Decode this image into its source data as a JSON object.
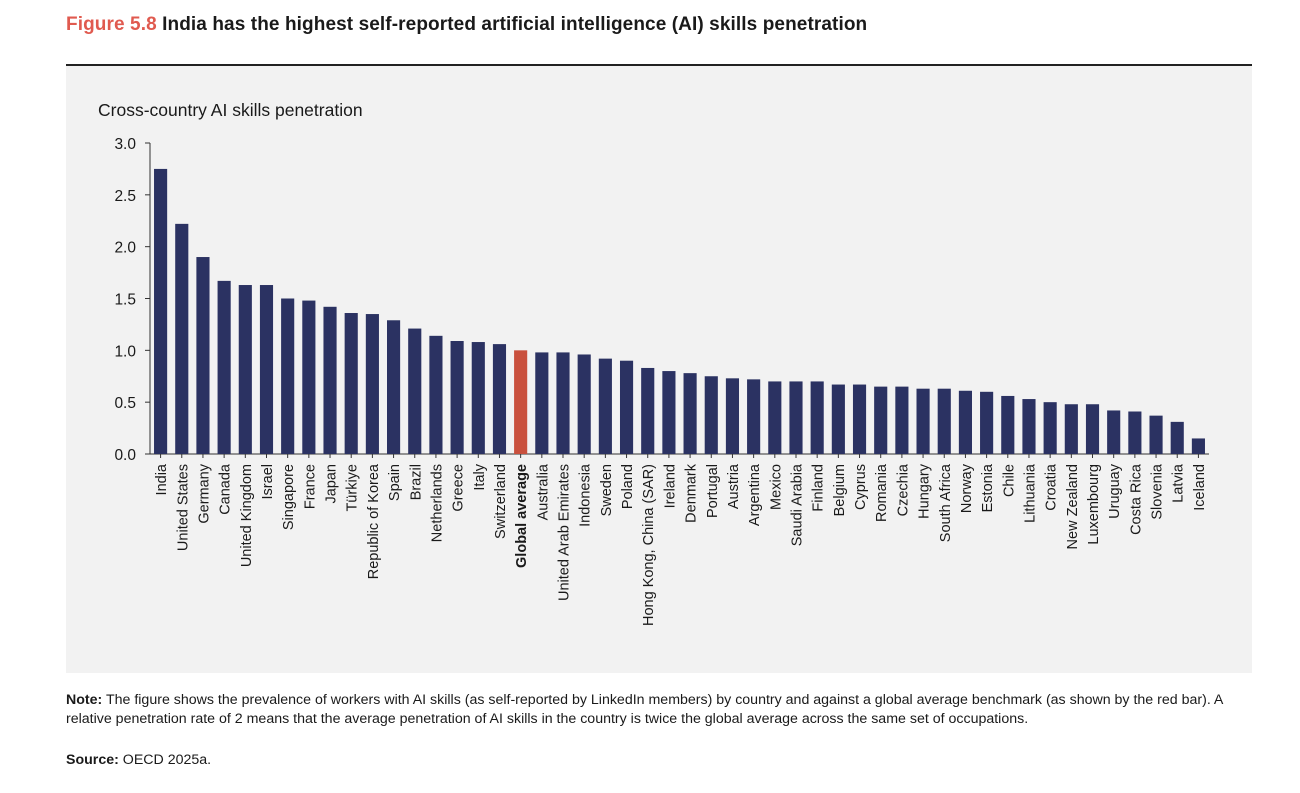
{
  "figure": {
    "label": "Figure 5.8",
    "title": "India has the highest self-reported artificial intelligence (AI) skills penetration"
  },
  "note": {
    "label": "Note:",
    "text": "The figure shows the prevalence of workers with AI skills (as self-reported by LinkedIn members) by country and against a global average benchmark (as shown by the red bar). A relative penetration rate of 2 means that the average penetration of AI skills in the country is twice the global average across the same set of occupations."
  },
  "source": {
    "label": "Source:",
    "text": "OECD 2025a."
  },
  "colors": {
    "bar": "#2b3262",
    "highlight": "#c9503d",
    "figure_label": "#e05a4f",
    "panel": "#f2f2f2"
  },
  "chart_data": {
    "type": "bar",
    "title": "Cross-country AI skills penetration",
    "xlabel": "",
    "ylabel": "",
    "ylim": [
      0,
      3.0
    ],
    "yticks": [
      "0.0",
      "0.5",
      "1.0",
      "1.5",
      "2.0",
      "2.5",
      "3.0"
    ],
    "grid": false,
    "legend": "none",
    "highlight_category": "Global average",
    "categories": [
      "India",
      "United States",
      "Germany",
      "Canada",
      "United Kingdom",
      "Israel",
      "Singapore",
      "France",
      "Japan",
      "Türkiye",
      "Republic of Korea",
      "Spain",
      "Brazil",
      "Netherlands",
      "Greece",
      "Italy",
      "Switzerland",
      "Global average",
      "Australia",
      "United Arab Emirates",
      "Indonesia",
      "Sweden",
      "Poland",
      "Hong Kong, China (SAR)",
      "Ireland",
      "Denmark",
      "Portugal",
      "Austria",
      "Argentina",
      "Mexico",
      "Saudi Arabia",
      "Finland",
      "Belgium",
      "Cyprus",
      "Romania",
      "Czechia",
      "Hungary",
      "South Africa",
      "Norway",
      "Estonia",
      "Chile",
      "Lithuania",
      "Croatia",
      "New Zealand",
      "Luxembourg",
      "Uruguay",
      "Costa Rica",
      "Slovenia",
      "Latvia",
      "Iceland"
    ],
    "values": [
      2.75,
      2.22,
      1.9,
      1.67,
      1.63,
      1.63,
      1.5,
      1.48,
      1.42,
      1.36,
      1.35,
      1.29,
      1.21,
      1.14,
      1.09,
      1.08,
      1.06,
      1.0,
      0.98,
      0.98,
      0.96,
      0.92,
      0.9,
      0.83,
      0.8,
      0.78,
      0.75,
      0.73,
      0.72,
      0.7,
      0.7,
      0.7,
      0.67,
      0.67,
      0.65,
      0.65,
      0.63,
      0.63,
      0.61,
      0.6,
      0.56,
      0.53,
      0.5,
      0.48,
      0.48,
      0.42,
      0.41,
      0.37,
      0.31,
      0.15
    ]
  }
}
